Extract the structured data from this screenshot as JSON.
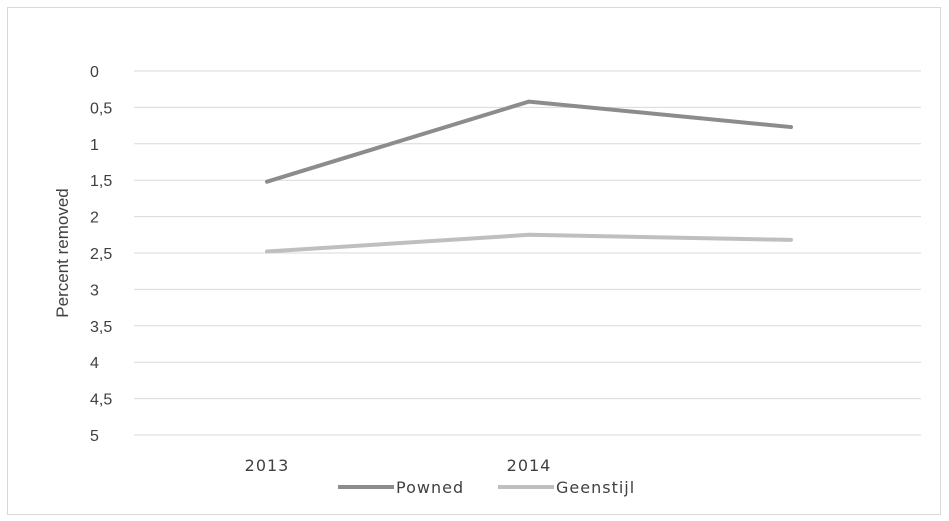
{
  "chart_data": {
    "type": "line",
    "title": "",
    "xlabel": "",
    "ylabel": "Percent removed",
    "y_inverted": true,
    "ylim": [
      0,
      5
    ],
    "y_ticks": [
      "0",
      "0,5",
      "1",
      "1,5",
      "2",
      "2,5",
      "3",
      "3,5",
      "4",
      "4,5",
      "5"
    ],
    "x_tick_labels": [
      "2013",
      "2014"
    ],
    "grid": true,
    "legend_position": "bottom",
    "series": [
      {
        "name": "Powned",
        "color": "#8c8c8c",
        "values": [
          1.52,
          0.42,
          0.77
        ]
      },
      {
        "name": "Geenstijl",
        "color": "#bfbfbf",
        "values": [
          2.48,
          2.25,
          2.32
        ]
      }
    ]
  }
}
